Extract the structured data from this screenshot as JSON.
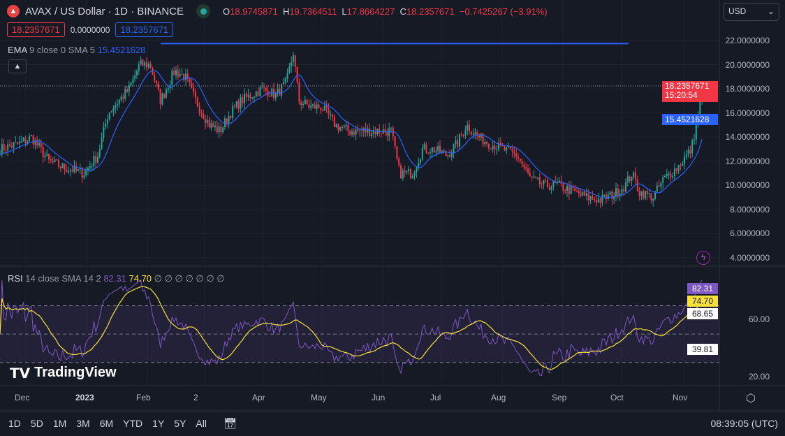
{
  "header": {
    "title": "AVAX / US Dollar · 1D · BINANCE",
    "o_label": "O",
    "o": "18.9745871",
    "h_label": "H",
    "h": "19.7364511",
    "l_label": "L",
    "l": "17.8664227",
    "c_label": "C",
    "c": "18.2357671",
    "change": "−0.7425267 (−3.91%)"
  },
  "order": {
    "sell": "18.2357671",
    "spread": "0.0000000",
    "buy": "18.2357671"
  },
  "ema": {
    "label": "EMA",
    "params": "9 close 0 SMA 5",
    "value": "15.4521628"
  },
  "rsi": {
    "label": "RSI",
    "params": "14 close SMA 14 2",
    "value": "82.31",
    "sma": "74.70",
    "nulls": "∅ ∅ ∅ ∅ ∅ ∅ ∅"
  },
  "currency": "USD",
  "price_axis": [
    "22.0000000",
    "20.0000000",
    "18.0000000",
    "16.0000000",
    "14.0000000",
    "12.0000000",
    "10.0000000",
    "8.0000000",
    "6.0000000",
    "4.0000000"
  ],
  "last_price": {
    "value": "18.2357671",
    "countdown": "15:20:54"
  },
  "ema_tag": "15.4521628",
  "rsi_axis": [
    "60.00",
    "20.00"
  ],
  "rsi_tags": {
    "rsi": "82.31",
    "sma": "74.70",
    "upper": "68.65",
    "lower": "39.81"
  },
  "time_axis": [
    "Dec",
    "2023",
    "Feb",
    "2",
    "Apr",
    "May",
    "Jun",
    "Jul",
    "Aug",
    "Sep",
    "Oct",
    "Nov"
  ],
  "ranges": [
    "1D",
    "5D",
    "1M",
    "3M",
    "6M",
    "YTD",
    "1Y",
    "5Y",
    "All"
  ],
  "clock": "08:39:05 (UTC)",
  "brand": "TradingView",
  "colors": {
    "up": "#26a69a",
    "down": "#f23645",
    "ema": "#2962ff",
    "rsi": "#7e57c2",
    "rsi_sma": "#f7e03a"
  },
  "chart_data": {
    "type": "candlestick",
    "title": "AVAX / US Dollar",
    "ylim": [
      4,
      22
    ],
    "hline": 21.75,
    "keypoints": [
      [
        0,
        13
      ],
      [
        30,
        13.5
      ],
      [
        45,
        14
      ],
      [
        70,
        12
      ],
      [
        90,
        11.5
      ],
      [
        120,
        11
      ],
      [
        140,
        12.5
      ],
      [
        155,
        16
      ],
      [
        170,
        17
      ],
      [
        185,
        18
      ],
      [
        200,
        20
      ],
      [
        215,
        20
      ],
      [
        230,
        17
      ],
      [
        250,
        19.5
      ],
      [
        265,
        19
      ],
      [
        280,
        17
      ],
      [
        300,
        15
      ],
      [
        315,
        14.5
      ],
      [
        330,
        16
      ],
      [
        345,
        17
      ],
      [
        360,
        17.5
      ],
      [
        375,
        18
      ],
      [
        395,
        17.5
      ],
      [
        410,
        18.5
      ],
      [
        420,
        21
      ],
      [
        428,
        17
      ],
      [
        445,
        16.5
      ],
      [
        460,
        16.5
      ],
      [
        480,
        15
      ],
      [
        500,
        14.5
      ],
      [
        520,
        14.5
      ],
      [
        540,
        14.5
      ],
      [
        560,
        14.5
      ],
      [
        572,
        11
      ],
      [
        590,
        11
      ],
      [
        605,
        13
      ],
      [
        620,
        13
      ],
      [
        640,
        12.5
      ],
      [
        655,
        13.5
      ],
      [
        668,
        15
      ],
      [
        685,
        14
      ],
      [
        700,
        13.5
      ],
      [
        720,
        13
      ],
      [
        740,
        12.5
      ],
      [
        760,
        10.5
      ],
      [
        780,
        10
      ],
      [
        800,
        10
      ],
      [
        820,
        9.5
      ],
      [
        840,
        9
      ],
      [
        860,
        8.8
      ],
      [
        880,
        9.3
      ],
      [
        895,
        10
      ],
      [
        905,
        11
      ],
      [
        915,
        9.5
      ],
      [
        935,
        9
      ],
      [
        950,
        10.5
      ],
      [
        970,
        11.5
      ],
      [
        990,
        13
      ],
      [
        1000,
        16
      ],
      [
        1006,
        18.2
      ]
    ]
  }
}
